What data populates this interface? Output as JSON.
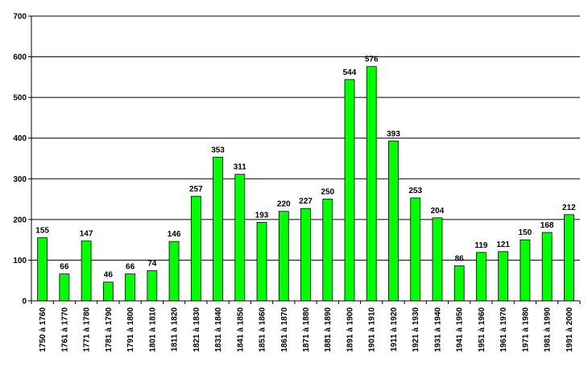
{
  "chart_data": {
    "type": "bar",
    "categories": [
      "1750 à 1760",
      "1761 à 1770",
      "1771 à 1780",
      "1781 à 1790",
      "1791 à 1800",
      "1801 à 1810",
      "1811 à 1820",
      "1821 à 1830",
      "1831 à 1840",
      "1841 à 1850",
      "1851 à 1860",
      "1861 à 1870",
      "1871 à 1880",
      "1881 à 1890",
      "1891 à 1900",
      "1901 à 1910",
      "1911 à 1920",
      "1921 à 1930",
      "1931 à 1940",
      "1941 à 1950",
      "1951 à 1960",
      "1961 à 1970",
      "1971 à 1980",
      "1981 à 1990",
      "1991 à 2000"
    ],
    "values": [
      155,
      66,
      147,
      46,
      66,
      74,
      146,
      257,
      353,
      311,
      193,
      220,
      227,
      250,
      544,
      576,
      393,
      253,
      204,
      86,
      119,
      121,
      150,
      168,
      212
    ],
    "color": "#00ff00",
    "ylim": [
      0,
      700
    ],
    "yticks": [
      0,
      100,
      200,
      300,
      400,
      500,
      600,
      700
    ],
    "grid": true
  }
}
